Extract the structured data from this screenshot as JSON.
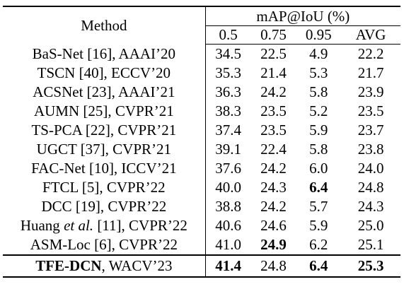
{
  "table": {
    "header": {
      "method_label": "Method",
      "metric_group": "mAP@IoU (%)",
      "columns": [
        "0.5",
        "0.75",
        "0.95",
        "AVG"
      ]
    },
    "rows": [
      {
        "name_pre": "BaS-Net [16], AAAI’20",
        "name_ital": "",
        "name_post": "",
        "values": [
          "34.5",
          "22.5",
          "4.9",
          "22.2"
        ],
        "bold": [
          false,
          false,
          false,
          false
        ]
      },
      {
        "name_pre": "TSCN [40], ECCV’20",
        "name_ital": "",
        "name_post": "",
        "values": [
          "35.3",
          "21.4",
          "5.3",
          "21.7"
        ],
        "bold": [
          false,
          false,
          false,
          false
        ]
      },
      {
        "name_pre": "ACSNet [23], AAAI’21",
        "name_ital": "",
        "name_post": "",
        "values": [
          "36.3",
          "24.2",
          "5.8",
          "23.9"
        ],
        "bold": [
          false,
          false,
          false,
          false
        ]
      },
      {
        "name_pre": "AUMN [25], CVPR’21",
        "name_ital": "",
        "name_post": "",
        "values": [
          "38.3",
          "23.5",
          "5.2",
          "23.5"
        ],
        "bold": [
          false,
          false,
          false,
          false
        ]
      },
      {
        "name_pre": "TS-PCA [22], CVPR’21",
        "name_ital": "",
        "name_post": "",
        "values": [
          "37.4",
          "23.5",
          "5.9",
          "23.7"
        ],
        "bold": [
          false,
          false,
          false,
          false
        ]
      },
      {
        "name_pre": "UGCT [37], CVPR’21",
        "name_ital": "",
        "name_post": "",
        "values": [
          "39.1",
          "22.4",
          "5.8",
          "23.8"
        ],
        "bold": [
          false,
          false,
          false,
          false
        ]
      },
      {
        "name_pre": "FAC-Net [10], ICCV’21",
        "name_ital": "",
        "name_post": "",
        "values": [
          "37.6",
          "24.2",
          "6.0",
          "24.0"
        ],
        "bold": [
          false,
          false,
          false,
          false
        ]
      },
      {
        "name_pre": "FTCL [5], CVPR’22",
        "name_ital": "",
        "name_post": "",
        "values": [
          "40.0",
          "24.3",
          "6.4",
          "24.8"
        ],
        "bold": [
          false,
          false,
          true,
          false
        ]
      },
      {
        "name_pre": "DCC [19], CVPR’22",
        "name_ital": "",
        "name_post": "",
        "values": [
          "38.8",
          "24.2",
          "5.7",
          "24.3"
        ],
        "bold": [
          false,
          false,
          false,
          false
        ]
      },
      {
        "name_pre": "Huang ",
        "name_ital": "et al.",
        "name_post": " [11], CVPR’22",
        "values": [
          "40.6",
          "24.6",
          "5.9",
          "25.0"
        ],
        "bold": [
          false,
          false,
          false,
          false
        ]
      },
      {
        "name_pre": "ASM-Loc [6], CVPR’22",
        "name_ital": "",
        "name_post": "",
        "values": [
          "41.0",
          "24.9",
          "6.2",
          "25.1"
        ],
        "bold": [
          false,
          true,
          false,
          false
        ]
      }
    ],
    "ours": {
      "name_bold": "TFE-DCN",
      "name_rest": ", WACV’23",
      "values": [
        "41.4",
        "24.8",
        "6.4",
        "25.3"
      ],
      "bold": [
        true,
        false,
        true,
        true
      ]
    }
  }
}
